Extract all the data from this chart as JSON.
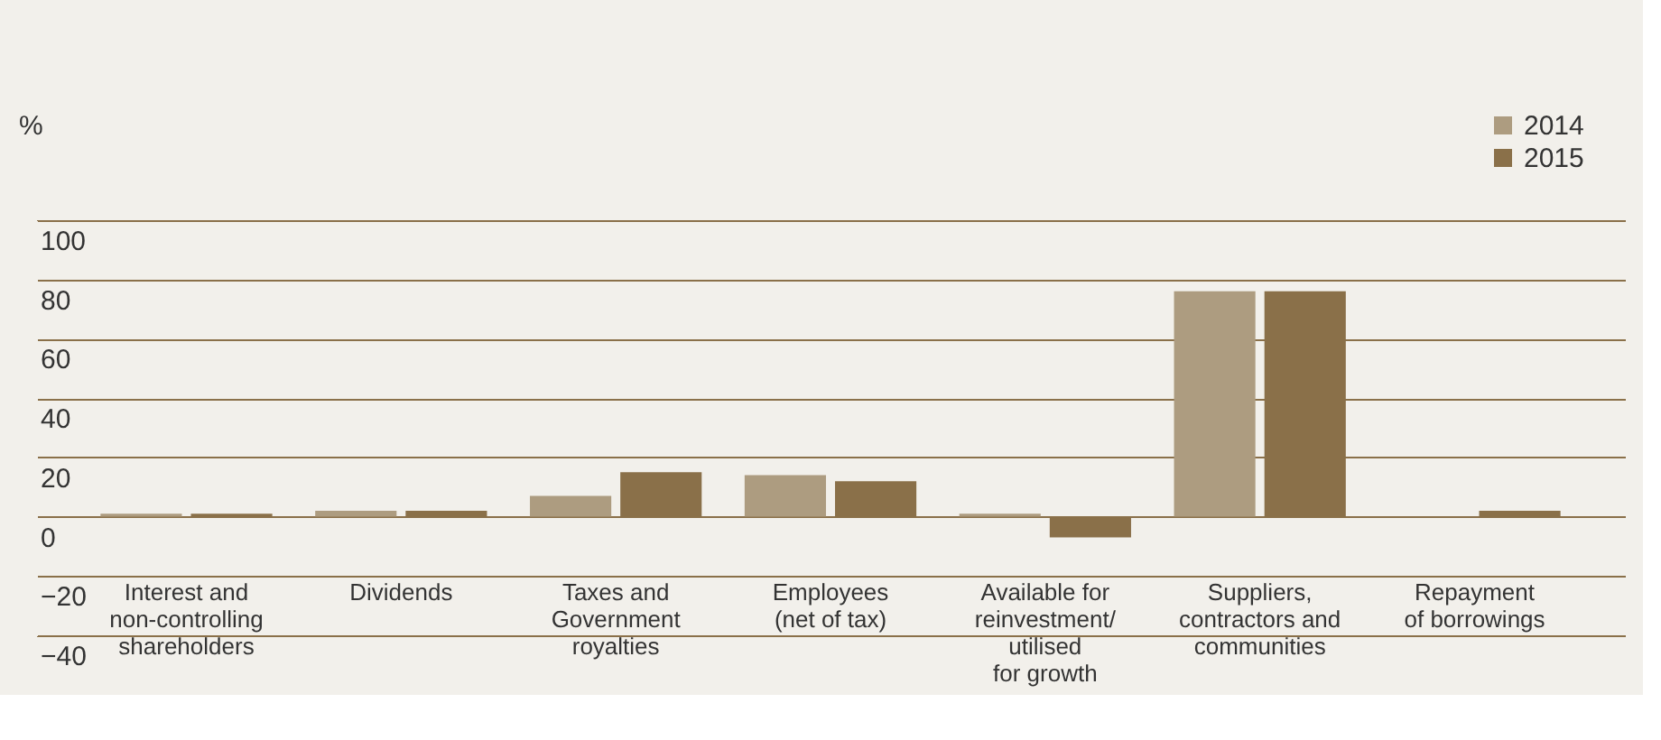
{
  "chart_data": {
    "type": "bar",
    "ylabel": "%",
    "categories": [
      "Interest and\nnon-controlling\nshareholders",
      "Dividends",
      "Taxes and\nGovernment\nroyalties",
      "Employees\n(net of tax)",
      "Available for\nreinvestment/\nutilised\nfor growth",
      "Suppliers,\ncontractors and\ncommunities",
      "Repayment\nof borrowings"
    ],
    "series": [
      {
        "name": "2014",
        "color": "#ad9c80",
        "values": [
          1,
          2,
          7,
          14,
          1,
          76,
          0
        ]
      },
      {
        "name": "2015",
        "color": "#8a7049",
        "values": [
          1,
          2,
          15,
          12,
          -7,
          76,
          2
        ]
      }
    ],
    "ylim": [
      -40,
      100
    ],
    "yticks": [
      -40,
      -20,
      0,
      20,
      40,
      60,
      80,
      100
    ],
    "grid": "y",
    "legend": "top right"
  }
}
